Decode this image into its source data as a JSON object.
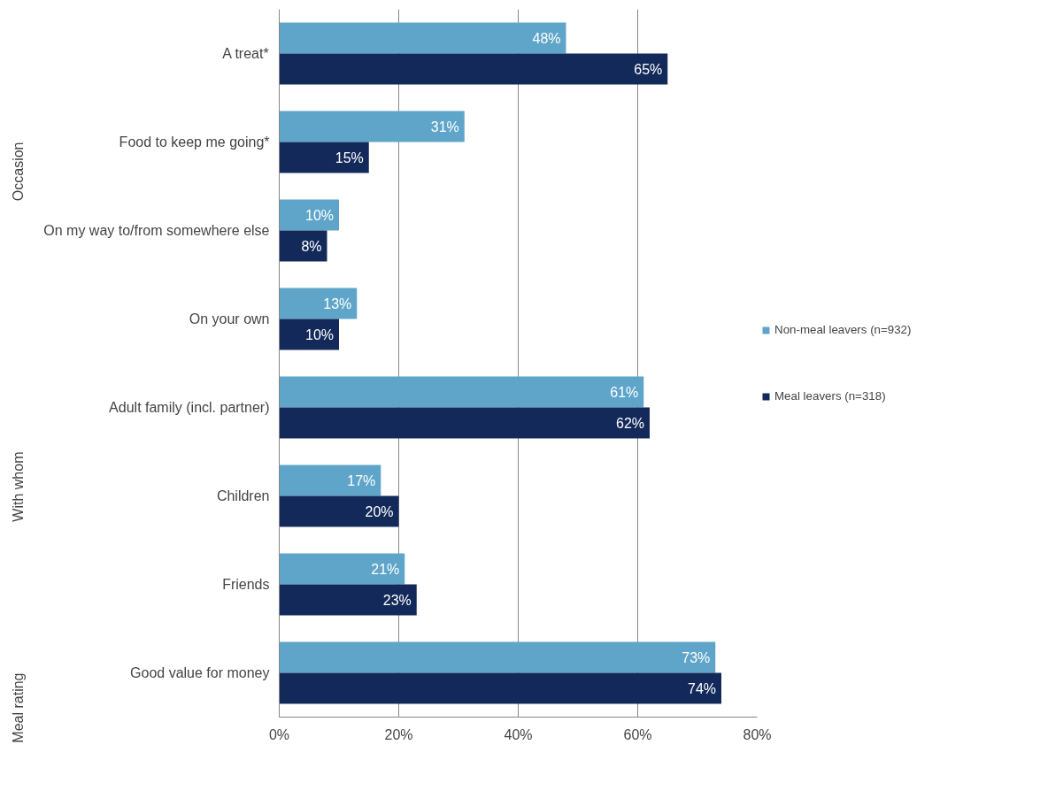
{
  "chart_data": {
    "type": "bar",
    "orientation": "horizontal",
    "categories": [
      "A treat*",
      "Food to keep me going*",
      "On my way to/from somewhere else",
      "On your own",
      "Adult family (incl. partner)",
      "Children",
      "Friends",
      "Good value for money"
    ],
    "series": [
      {
        "name": "Non-meal leavers (n=932)",
        "color": "#5ea5c9",
        "values": [
          48,
          31,
          10,
          13,
          61,
          17,
          21,
          73
        ],
        "value_labels": [
          "48%",
          "31%",
          "10%",
          "13%",
          "61%",
          "17%",
          "21%",
          "73%"
        ]
      },
      {
        "name": "Meal leavers (n=318)",
        "color": "#12295a",
        "values": [
          65,
          15,
          8,
          10,
          62,
          20,
          23,
          74
        ],
        "value_labels": [
          "65%",
          "15%",
          "8%",
          "10%",
          "62%",
          "20%",
          "23%",
          "74%"
        ]
      }
    ],
    "xlim": [
      0,
      80
    ],
    "xticks": [
      {
        "value": 0,
        "label": "0%"
      },
      {
        "value": 20,
        "label": "20%"
      },
      {
        "value": 40,
        "label": "40%"
      },
      {
        "value": 60,
        "label": "60%"
      },
      {
        "value": 80,
        "label": "80%"
      }
    ],
    "grid": "x",
    "legend": "right",
    "annotations": [
      "Occasion",
      "With whom",
      "Meal rating"
    ]
  }
}
